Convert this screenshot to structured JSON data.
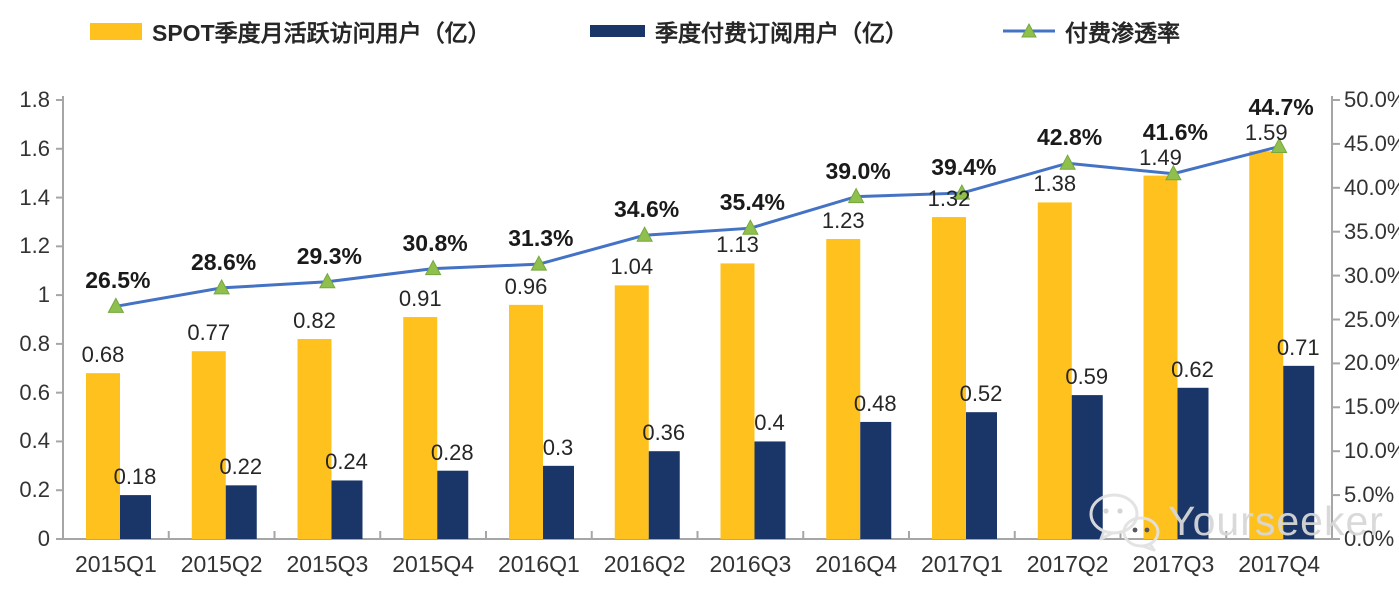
{
  "legend": {
    "items": [
      {
        "label": "SPOT季度月活跃访问用户（亿）",
        "type": "bar",
        "color": "#FFC11E"
      },
      {
        "label": "季度付费订阅用户（亿）",
        "type": "bar",
        "color": "#1A3668"
      },
      {
        "label": "付费渗透率",
        "type": "line",
        "color": "#4472C4",
        "marker_color": "#8FBF4D"
      }
    ]
  },
  "watermark": {
    "icon": "wechat-icon",
    "text": "Yourseeker"
  },
  "chart_data": {
    "type": "bar",
    "subtype": "bar+line combo, dual axis",
    "categories": [
      "2015Q1",
      "2015Q2",
      "2015Q3",
      "2015Q4",
      "2016Q1",
      "2016Q2",
      "2016Q3",
      "2016Q4",
      "2017Q1",
      "2017Q2",
      "2017Q3",
      "2017Q4"
    ],
    "series": [
      {
        "name": "SPOT季度月活跃访问用户（亿）",
        "type": "bar",
        "axis": "left",
        "color": "#FFC11E",
        "values": [
          0.68,
          0.77,
          0.82,
          0.91,
          0.96,
          1.04,
          1.13,
          1.23,
          1.32,
          1.38,
          1.49,
          1.59
        ]
      },
      {
        "name": "季度付费订阅用户（亿）",
        "type": "bar",
        "axis": "left",
        "color": "#1A3668",
        "values": [
          0.18,
          0.22,
          0.24,
          0.28,
          0.3,
          0.36,
          0.4,
          0.48,
          0.52,
          0.59,
          0.62,
          0.71
        ]
      },
      {
        "name": "付费渗透率",
        "type": "line",
        "axis": "right",
        "color": "#4472C4",
        "marker": "triangle",
        "marker_color": "#8FBF4D",
        "values": [
          26.5,
          28.6,
          29.3,
          30.8,
          31.3,
          34.6,
          35.4,
          39.0,
          39.4,
          42.8,
          41.6,
          44.7
        ],
        "labels": [
          "26.5%",
          "28.6%",
          "29.3%",
          "30.8%",
          "31.3%",
          "34.6%",
          "35.4%",
          "39.0%",
          "39.4%",
          "42.8%",
          "41.6%",
          "44.7%"
        ]
      }
    ],
    "left_axis": {
      "min": 0,
      "max": 1.8,
      "step": 0.2,
      "ticks": [
        "0",
        "0.2",
        "0.4",
        "0.6",
        "0.8",
        "1",
        "1.2",
        "1.4",
        "1.6",
        "1.8"
      ]
    },
    "right_axis": {
      "min": 0,
      "max": 50,
      "step": 5,
      "ticks": [
        "0.0%",
        "5.0%",
        "10.0%",
        "15.0%",
        "20.0%",
        "25.0%",
        "30.0%",
        "35.0%",
        "40.0%",
        "45.0%",
        "50.0%"
      ]
    },
    "grid": false,
    "legend_position": "top",
    "axis_color": "#A6A6A6"
  }
}
